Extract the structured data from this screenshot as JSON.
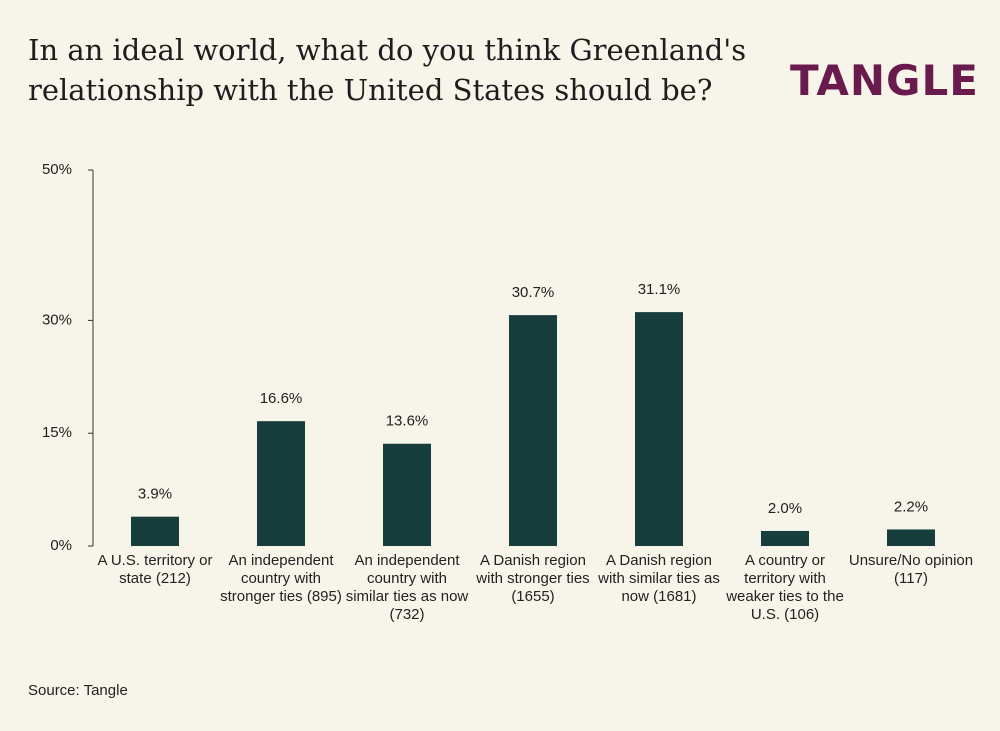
{
  "chart_data": {
    "type": "bar",
    "title": "In an ideal world, what do you think Greenland's relationship with the United States should be?",
    "logo": "TANGLE",
    "source": "Source: Tangle",
    "categories": [
      "A U.S. territory or state (212)",
      "An independent country with stronger ties (895)",
      "An independent country with similar ties as now (732)",
      "A Danish region with stronger ties (1655)",
      "A Danish region with similar ties as now (1681)",
      "A country or territory with weaker ties to the U.S. (106)",
      "Unsure/No opinion (117)"
    ],
    "values": [
      3.9,
      16.6,
      13.6,
      30.7,
      31.1,
      2.0,
      2.2
    ],
    "value_labels": [
      "3.9%",
      "16.6%",
      "13.6%",
      "30.7%",
      "31.1%",
      "2.0%",
      "2.2%"
    ],
    "color": "#173d3d",
    "ylim": [
      0,
      50
    ],
    "yticks": [
      {
        "value": 0,
        "label": "0%"
      },
      {
        "value": 15,
        "label": "15%"
      },
      {
        "value": 30,
        "label": "30%"
      },
      {
        "value": 50,
        "label": "50%"
      }
    ]
  }
}
